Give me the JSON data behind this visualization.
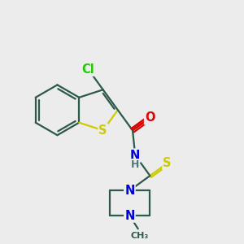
{
  "background_color": "#ececec",
  "bond_color": "#2d5a4a",
  "bond_width": 1.6,
  "atom_colors": {
    "Cl": "#22cc00",
    "O": "#dd0000",
    "S": "#cccc00",
    "N": "#0000dd",
    "H": "#777777"
  },
  "font_size": 10.5,
  "figsize": [
    3.0,
    3.0
  ],
  "dpi": 100,
  "xlim": [
    0,
    10
  ],
  "ylim": [
    0,
    10
  ]
}
